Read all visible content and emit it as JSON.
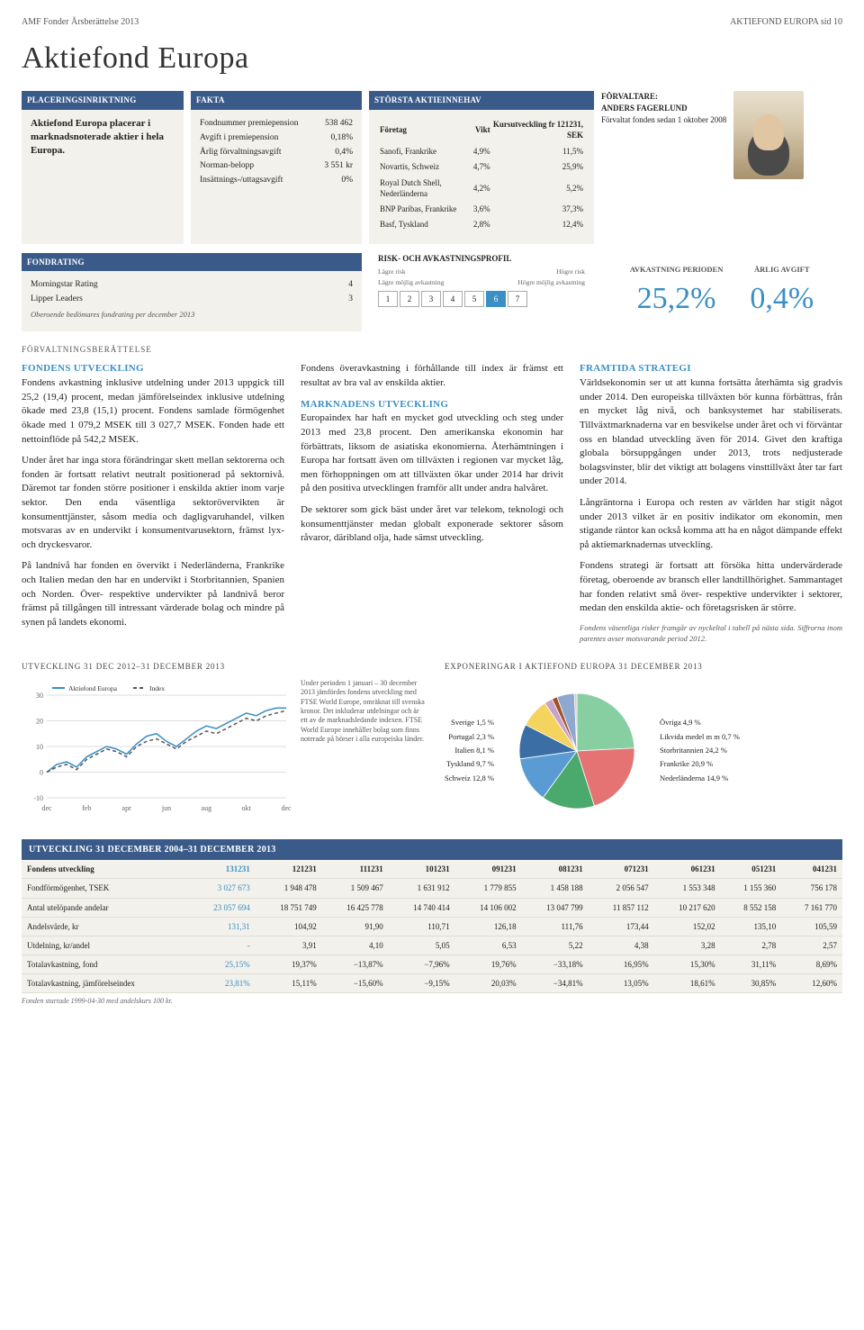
{
  "header": {
    "left": "AMF Fonder Årsberättelse 2013",
    "right": "AKTIEFOND EUROPA  sid 10"
  },
  "title": "Aktiefond Europa",
  "placering": {
    "head": "PLACERINGSINRIKTNING",
    "text": "Aktiefond Europa placerar i marknadsnoterade aktier i hela Europa."
  },
  "fakta": {
    "head": "FAKTA",
    "rows": [
      {
        "k": "Fondnummer premiepension",
        "v": "538 462"
      },
      {
        "k": "Avgift i premiepension",
        "v": "0,18%"
      },
      {
        "k": "Årlig förvaltningsavgift",
        "v": "0,4%"
      },
      {
        "k": "Norman-belopp",
        "v": "3 551 kr"
      },
      {
        "k": "Insättnings-/uttagsavgift",
        "v": "0%"
      }
    ]
  },
  "holdings": {
    "head": "STÖRSTA AKTIEINNEHAV",
    "cols": [
      "Företag",
      "Vikt",
      "Kursutveckling fr 121231, SEK"
    ],
    "rows": [
      [
        "Sanofi, Frankrike",
        "4,9%",
        "11,5%"
      ],
      [
        "Novartis, Schweiz",
        "4,7%",
        "25,9%"
      ],
      [
        "Royal Dutch Shell, Nederländerna",
        "4,2%",
        "5,2%"
      ],
      [
        "BNP Paribas, Frankrike",
        "3,6%",
        "37,3%"
      ],
      [
        "Basf, Tyskland",
        "2,8%",
        "12,4%"
      ]
    ]
  },
  "manager": {
    "head": "FÖRVALTARE:",
    "name": "ANDERS FAGERLUND",
    "text": "Förvaltat fonden sedan 1 oktober 2008"
  },
  "rating": {
    "head": "FONDRATING",
    "rows": [
      {
        "k": "Morningstar Rating",
        "v": "4"
      },
      {
        "k": "Lipper Leaders",
        "v": "3"
      }
    ],
    "note": "Oberoende bedömares fondrating per december 2013"
  },
  "risk": {
    "head": "RISK- OCH AVKASTNINGSPROFIL",
    "low": "Lägre risk",
    "high": "Högre risk",
    "low2": "Lägre möjlig avkastning",
    "high2": "Högre möjlig avkastning",
    "active": 6
  },
  "ret": {
    "l1": "AVKASTNING PERIODEN",
    "v1": "25,2%",
    "l2": "ÅRLIG AVGIFT",
    "v2": "0,4%"
  },
  "berattelse_lbl": "FÖRVALTNINGSBERÄTTELSE",
  "body": {
    "h1": "FONDENS UTVECKLING",
    "p1": "Fondens avkastning inklusive utdelning under 2013 uppgick till 25,2 (19,4) procent, medan jämförelseindex inklusive utdelning ökade med 23,8 (15,1) procent. Fondens samlade förmögenhet ökade med 1 079,2 MSEK till 3 027,7 MSEK. Fonden hade ett nettoinflöde på 542,2 MSEK.",
    "p2": "Under året har inga stora förändringar skett mellan sektorerna och fonden är fortsatt relativt neutralt positionerad på sektornivå. Däremot tar fonden större positioner i enskilda aktier inom varje sektor. Den enda väsentliga sektorövervikten är konsumenttjänster, såsom media och dagligvaruhandel, vilken motsvaras av en undervikt i konsumentvarusektorn, främst lyx- och dryckesvaror.",
    "p3": "På landnivå har fonden en övervikt i Nederländerna, Frankrike och Italien medan den har en undervikt i Storbritannien, Spanien och Norden. Över- respektive undervikter på landnivå beror främst på tillgången till intressant värderade bolag och mindre på synen på landets ekonomi.",
    "p4": "Fondens överavkastning i förhållande till index är främst ett resultat av bra val av enskilda aktier.",
    "h2": "MARKNADENS UTVECKLING",
    "p5": "Europaindex har haft en mycket god utveckling och steg under 2013 med 23,8 procent. Den amerikanska ekonomin har förbättrats, liksom de asiatiska ekonomierna. Återhämtningen i Europa har fortsatt även om tillväxten i regionen var mycket låg, men förhoppningen om att tillväxten ökar under 2014 har drivit på den positiva utvecklingen framför allt under andra halvåret.",
    "p6": "De sektorer som gick bäst under året var telekom, teknologi och konsumenttjänster medan globalt exponerade sektorer såsom råvaror, däribland olja, hade sämst utveckling.",
    "h3": "FRAMTIDA STRATEGI",
    "p7": "Världsekonomin ser ut att kunna fortsätta återhämta sig gradvis under 2014. Den europeiska tillväxten bör kunna förbättras, från en mycket låg nivå, och banksystemet har stabiliserats. Tillväxtmarknaderna var en besvikelse under året och vi förväntar oss en blandad utveckling även för 2014. Givet den kraftiga globala börsuppgången under 2013, trots nedjusterade bolagsvinster, blir det viktigt att bolagens vinsttillväxt åter tar fart under 2014.",
    "p8": "Långräntorna i Europa och resten av världen har stigit något under 2013 vilket är en positiv indikator om ekonomin, men stigande räntor kan också komma att ha en något dämpande effekt på aktiemarknadernas utveckling.",
    "p9": "Fondens strategi är fortsatt att försöka hitta undervärderade företag, oberoende av bransch eller landtillhörighet. Sammantaget har fonden relativt små över- respektive undervikter i sektorer, medan den enskilda aktie- och företagsrisken är större.",
    "note": "Fondens väsentliga risker framgår av nyckeltal i tabell på nästa sida. Siffrorna inom parentes avser motsvarande period 2012."
  },
  "linechart": {
    "title": "UTVECKLING 31 DEC 2012–31 DECEMBER 2013",
    "type": "line",
    "x_labels": [
      "dec",
      "feb",
      "apr",
      "jun",
      "aug",
      "okt",
      "dec"
    ],
    "ylim": [
      -10,
      30
    ],
    "yticks": [
      -10,
      0,
      10,
      20,
      30
    ],
    "series": [
      {
        "name": "Aktiefond Europa",
        "color": "#3a8fc4",
        "dash": "none",
        "y": [
          0,
          3,
          4,
          2,
          6,
          8,
          10,
          9,
          7,
          11,
          14,
          15,
          12,
          10,
          13,
          16,
          18,
          17,
          19,
          21,
          23,
          22,
          24,
          25,
          25
        ]
      },
      {
        "name": "Index",
        "color": "#555555",
        "dash": "4,3",
        "y": [
          0,
          2,
          3,
          1,
          5,
          7,
          9,
          8,
          6,
          10,
          12,
          13,
          11,
          9,
          12,
          14,
          16,
          15,
          17,
          19,
          21,
          20,
          22,
          23,
          24
        ]
      }
    ],
    "note": "Under perioden 1 januari – 30 december 2013 jämfördes fondens utveckling med FTSE World Europe, omräknat till svenska kronor. Det inkluderar utdelningar och är ett av de marknadsledande indexen. FTSE World Europe innehåller bolag som finns noterade på börser i alla europeiska länder."
  },
  "pie": {
    "title": "EXPONERINGAR I AKTIEFOND EUROPA 31 DECEMBER 2013",
    "slices": [
      {
        "label": "Storbritannien 24,2 %",
        "value": 24.2,
        "color": "#87cfa1"
      },
      {
        "label": "Frankrike 20,9 %",
        "value": 20.9,
        "color": "#e57373"
      },
      {
        "label": "Nederländerna 14,9 %",
        "value": 14.9,
        "color": "#4aa96c"
      },
      {
        "label": "Schweiz 12,8 %",
        "value": 12.8,
        "color": "#5a9bd4"
      },
      {
        "label": "Tyskland 9,7 %",
        "value": 9.7,
        "color": "#3a6ea5"
      },
      {
        "label": "Italien 8,1 %",
        "value": 8.1,
        "color": "#f4d35e"
      },
      {
        "label": "Portugal 2,3 %",
        "value": 2.3,
        "color": "#c8a2c8"
      },
      {
        "label": "Sverige 1,5 %",
        "value": 1.5,
        "color": "#a0522d"
      },
      {
        "label": "Övriga 4,9 %",
        "value": 4.9,
        "color": "#8fa8d0"
      },
      {
        "label": "Likvida medel m m 0,7 %",
        "value": 0.7,
        "color": "#cccccc"
      }
    ],
    "left_labels": [
      "Sverige 1,5 %",
      "Portugal 2,3 %",
      "Italien 8,1 %",
      "Tyskland 9,7 %",
      "Schweiz 12,8 %"
    ],
    "right_labels": [
      "Övriga 4,9 %",
      "Likvida medel m m 0,7 %",
      "Storbritannien 24,2 %",
      "Frankrike 20,9 %",
      "Nederländerna 14,9 %"
    ]
  },
  "devtable": {
    "title": "UTVECKLING 31 DECEMBER 2004–31 DECEMBER 2013",
    "cols": [
      "Fondens utveckling",
      "131231",
      "121231",
      "111231",
      "101231",
      "091231",
      "081231",
      "071231",
      "061231",
      "051231",
      "041231"
    ],
    "rows": [
      [
        "Fondförmögenhet, TSEK",
        "3 027 673",
        "1 948 478",
        "1 509 467",
        "1 631 912",
        "1 779 855",
        "1 458 188",
        "2 056 547",
        "1 553 348",
        "1 155 360",
        "756 178"
      ],
      [
        "Antal utelöpande andelar",
        "23 057 694",
        "18 751 749",
        "16 425 778",
        "14 740 414",
        "14 106 002",
        "13 047 799",
        "11 857 112",
        "10 217 620",
        "8 552 158",
        "7 161 770"
      ],
      [
        "Andelsvärde, kr",
        "131,31",
        "104,92",
        "91,90",
        "110,71",
        "126,18",
        "111,76",
        "173,44",
        "152,02",
        "135,10",
        "105,59"
      ],
      [
        "Utdelning, kr/andel",
        "-",
        "3,91",
        "4,10",
        "5,05",
        "6,53",
        "5,22",
        "4,38",
        "3,28",
        "2,78",
        "2,57"
      ],
      [
        "Totalavkastning, fond",
        "25,15%",
        "19,37%",
        "−13,87%",
        "−7,96%",
        "19,76%",
        "−33,18%",
        "16,95%",
        "15,30%",
        "31,11%",
        "8,69%"
      ],
      [
        "Totalavkastning, jämförelseindex",
        "23,81%",
        "15,11%",
        "−15,60%",
        "−9,15%",
        "20,03%",
        "−34,81%",
        "13,05%",
        "18,61%",
        "30,85%",
        "12,60%"
      ]
    ],
    "footnote": "Fonden startade 1999-04-30 med andelskurs 100 kr."
  }
}
